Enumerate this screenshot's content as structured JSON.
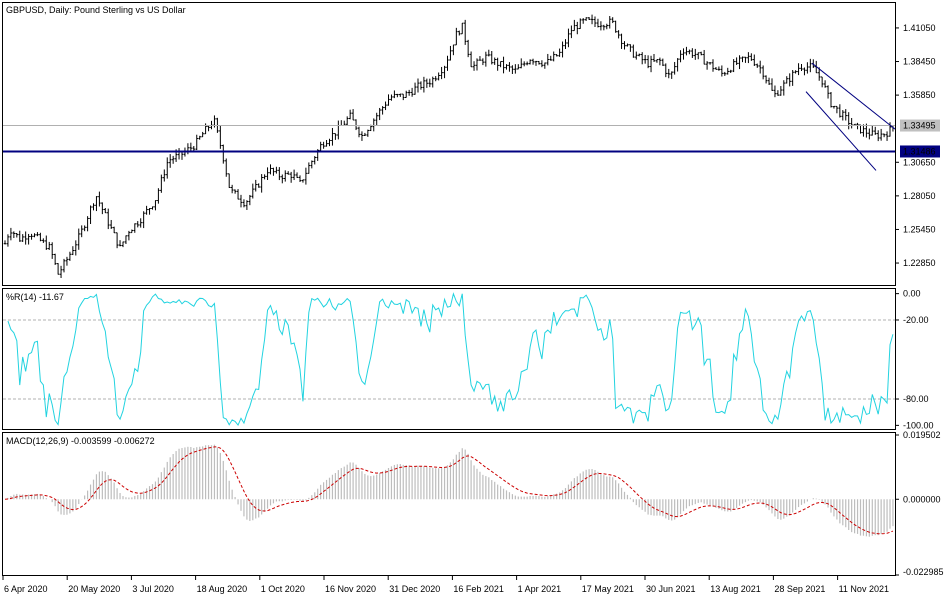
{
  "chart_data": [
    {
      "type": "ohlc",
      "title": "GBPUSD, Daily:  Pound Sterling vs US Dollar",
      "price_ticks": [
        "1.41050",
        "1.38450",
        "1.35850",
        "1.33250",
        "1.30650",
        "1.28050",
        "1.25450",
        "1.22850"
      ],
      "ylim": [
        1.2115,
        1.4298
      ],
      "last_price_label": "1.33495",
      "last_price": 1.33495,
      "support_label": "1.31486",
      "support_level": 1.31486,
      "x_dates": [
        "6 Apr 2020",
        "20 May 2020",
        "3 Jul 2020",
        "18 Aug 2020",
        "1 Oct 2020",
        "16 Nov 2020",
        "31 Dec 2020",
        "16 Feb 2021",
        "1 Apr 2021",
        "17 May 2021",
        "30 Jun 2021",
        "13 Aug 2021",
        "28 Sep 2021",
        "11 Nov 2021"
      ],
      "close_path": [
        [
          0,
          1.232
        ],
        [
          10,
          1.255
        ],
        [
          20,
          1.247
        ],
        [
          30,
          1.252
        ],
        [
          40,
          1.246
        ],
        [
          50,
          1.24
        ],
        [
          58,
          1.22
        ],
        [
          66,
          1.23
        ],
        [
          80,
          1.25
        ],
        [
          96,
          1.281
        ],
        [
          110,
          1.257
        ],
        [
          120,
          1.24
        ],
        [
          128,
          1.253
        ],
        [
          140,
          1.262
        ],
        [
          155,
          1.277
        ],
        [
          168,
          1.308
        ],
        [
          180,
          1.312
        ],
        [
          195,
          1.32
        ],
        [
          205,
          1.331
        ],
        [
          214,
          1.339
        ],
        [
          222,
          1.315
        ],
        [
          230,
          1.285
        ],
        [
          245,
          1.275
        ],
        [
          258,
          1.289
        ],
        [
          268,
          1.301
        ],
        [
          280,
          1.296
        ],
        [
          292,
          1.297
        ],
        [
          300,
          1.29
        ],
        [
          310,
          1.305
        ],
        [
          322,
          1.321
        ],
        [
          336,
          1.33
        ],
        [
          350,
          1.342
        ],
        [
          362,
          1.327
        ],
        [
          376,
          1.342
        ],
        [
          390,
          1.357
        ],
        [
          404,
          1.358
        ],
        [
          418,
          1.365
        ],
        [
          432,
          1.37
        ],
        [
          445,
          1.382
        ],
        [
          456,
          1.405
        ],
        [
          462,
          1.412
        ],
        [
          472,
          1.38
        ],
        [
          486,
          1.388
        ],
        [
          500,
          1.382
        ],
        [
          516,
          1.377
        ],
        [
          530,
          1.387
        ],
        [
          546,
          1.383
        ],
        [
          560,
          1.391
        ],
        [
          572,
          1.41
        ],
        [
          585,
          1.416
        ],
        [
          598,
          1.414
        ],
        [
          612,
          1.415
        ],
        [
          624,
          1.398
        ],
        [
          634,
          1.39
        ],
        [
          648,
          1.383
        ],
        [
          660,
          1.385
        ],
        [
          670,
          1.372
        ],
        [
          682,
          1.394
        ],
        [
          696,
          1.39
        ],
        [
          710,
          1.382
        ],
        [
          722,
          1.375
        ],
        [
          736,
          1.383
        ],
        [
          750,
          1.388
        ],
        [
          762,
          1.378
        ],
        [
          774,
          1.358
        ],
        [
          788,
          1.37
        ],
        [
          800,
          1.381
        ],
        [
          812,
          1.38
        ],
        [
          822,
          1.37
        ],
        [
          830,
          1.353
        ],
        [
          842,
          1.343
        ],
        [
          854,
          1.334
        ],
        [
          866,
          1.33
        ],
        [
          876,
          1.327
        ],
        [
          886,
          1.329
        ],
        [
          896,
          1.335
        ]
      ],
      "channel_upper": [
        [
          1.3832,
          812
        ],
        [
          1.3322,
          895
        ]
      ],
      "channel_lower": [
        [
          1.3612,
          806
        ],
        [
          1.3002,
          876
        ]
      ]
    },
    {
      "type": "line",
      "title": "%R(14) -11.67",
      "ylim": [
        -102,
        2
      ],
      "levels": [
        -20,
        -80
      ],
      "tick_labels": [
        "0.00",
        "-20.00",
        "-80.00",
        "-100.00"
      ],
      "tick_values": [
        0,
        -20,
        -80,
        -100
      ],
      "color": "#22d3e0"
    },
    {
      "type": "bar",
      "title": "MACD(12,26,9) -0.003599 -0.006272",
      "ylim": [
        -0.022985,
        0.019502
      ],
      "tick_labels": [
        "0.019502",
        "0.000000",
        "-0.022985"
      ],
      "tick_values": [
        0.019502,
        0,
        -0.022985
      ],
      "histogram_color": "#bdbdbd",
      "signal_color": "#cc0000"
    }
  ]
}
